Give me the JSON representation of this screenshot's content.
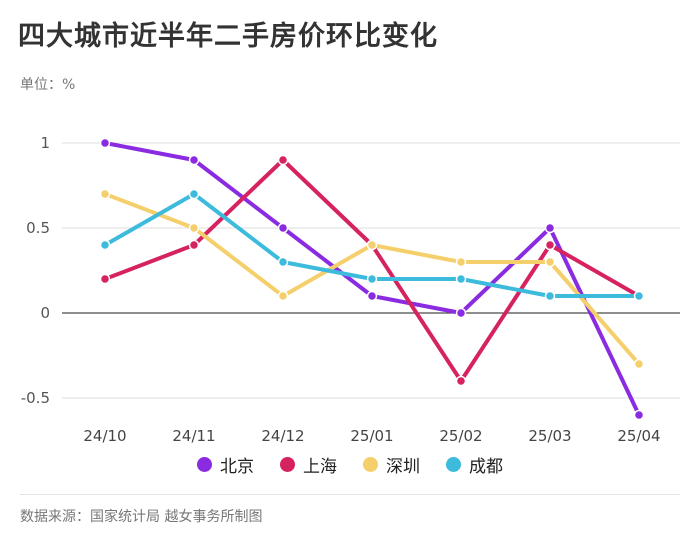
{
  "title": "四大城市近半年二手房价环比变化",
  "unit_label": "单位：%",
  "source": "数据来源：国家统计局 越女事务所制图",
  "chart_data": {
    "type": "line",
    "title": "四大城市近半年二手房价环比变化",
    "ylabel": "单位：%",
    "xlabel": "",
    "categories": [
      "24/10",
      "24/11",
      "24/12",
      "25/01",
      "25/02",
      "25/03",
      "25/04"
    ],
    "ylim": [
      -0.6,
      1.1
    ],
    "yticks": [
      1,
      0.5,
      0,
      -0.5
    ],
    "ytick_labels": [
      "1",
      "0.5",
      "0",
      "-0.5"
    ],
    "grid": true,
    "legend_position": "bottom",
    "series": [
      {
        "name": "北京",
        "color": "#8a2be2",
        "values": [
          1,
          0.9,
          0.5,
          0.1,
          0,
          0.5,
          -0.6
        ]
      },
      {
        "name": "上海",
        "color": "#d6235f",
        "values": [
          0.2,
          0.4,
          0.9,
          0.4,
          -0.4,
          0.4,
          0.1
        ]
      },
      {
        "name": "深圳",
        "color": "#f5cf6b",
        "values": [
          0.7,
          0.5,
          0.1,
          0.4,
          0.3,
          0.3,
          -0.3
        ]
      },
      {
        "name": "成都",
        "color": "#3dbbdc",
        "values": [
          0.4,
          0.7,
          0.3,
          0.2,
          0.2,
          0.1,
          0.1
        ]
      }
    ]
  }
}
